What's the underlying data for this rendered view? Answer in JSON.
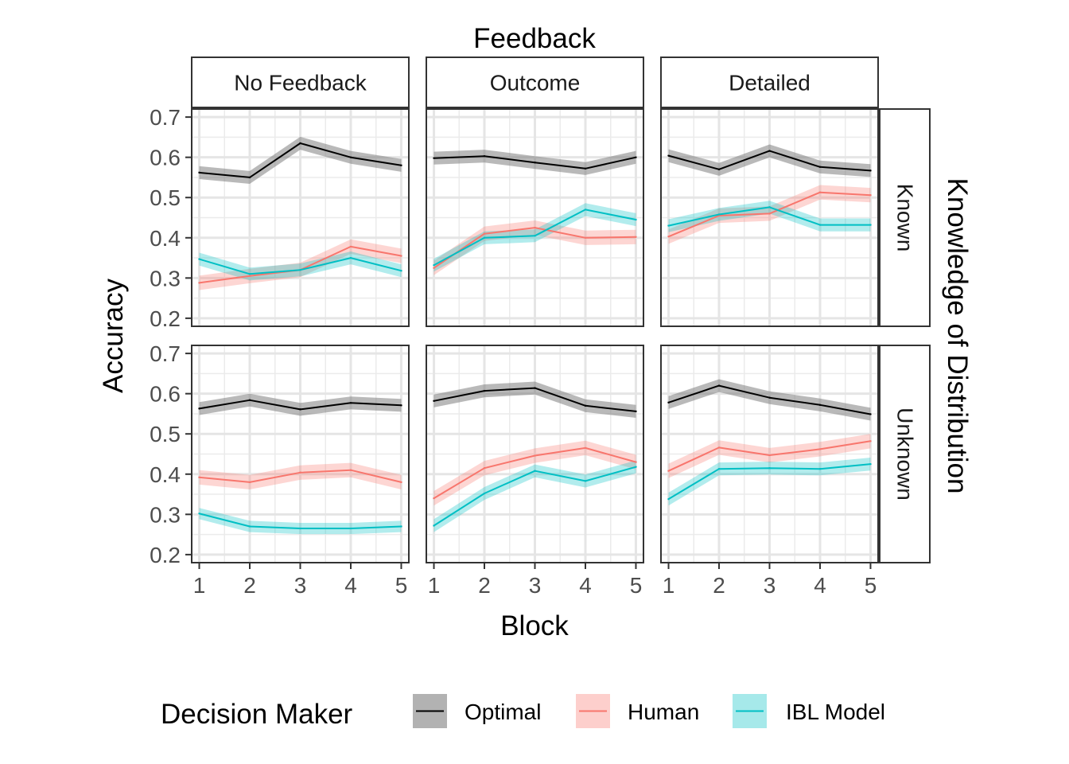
{
  "chart_data": {
    "type": "line",
    "facet_column_title": "Feedback",
    "facet_row_title": "Knowledge of Distribution",
    "columns": [
      "No Feedback",
      "Outcome",
      "Detailed"
    ],
    "rows": [
      "Known",
      "Unknown"
    ],
    "xlabel": "Block",
    "ylabel": "Accuracy",
    "x": [
      1,
      2,
      3,
      4,
      5
    ],
    "x_ticks": [
      "1",
      "2",
      "3",
      "4",
      "5"
    ],
    "xlim": [
      0.85,
      5.15
    ],
    "ylim": [
      0.18,
      0.72
    ],
    "y_ticks": [
      "0.2",
      "0.3",
      "0.4",
      "0.5",
      "0.6",
      "0.7"
    ],
    "grid": true,
    "legend": {
      "title": "Decision Maker",
      "position": "bottom",
      "entries": [
        {
          "name": "Optimal",
          "color": "#000000",
          "band_color": "#7f7f7f"
        },
        {
          "name": "Human",
          "color": "#F8766D",
          "band_color": "#F8766D"
        },
        {
          "name": "IBL Model",
          "color": "#00BFC4",
          "band_color": "#00BFC4"
        }
      ]
    },
    "panels": [
      {
        "column": "No Feedback",
        "row": "Known",
        "series": [
          {
            "name": "Optimal",
            "values": [
              0.562,
              0.55,
              0.635,
              0.6,
              0.58
            ],
            "band": 0.016
          },
          {
            "name": "Human",
            "values": [
              0.288,
              0.305,
              0.32,
              0.378,
              0.355
            ],
            "band": 0.018
          },
          {
            "name": "IBL Model",
            "values": [
              0.347,
              0.31,
              0.32,
              0.35,
              0.318
            ],
            "band": 0.016
          }
        ]
      },
      {
        "column": "Outcome",
        "row": "Known",
        "series": [
          {
            "name": "Optimal",
            "values": [
              0.598,
              0.603,
              0.587,
              0.572,
              0.6
            ],
            "band": 0.016
          },
          {
            "name": "Human",
            "values": [
              0.325,
              0.41,
              0.425,
              0.4,
              0.402
            ],
            "band": 0.018
          },
          {
            "name": "IBL Model",
            "values": [
              0.332,
              0.4,
              0.405,
              0.47,
              0.445
            ],
            "band": 0.016
          }
        ]
      },
      {
        "column": "Detailed",
        "row": "Known",
        "series": [
          {
            "name": "Optimal",
            "values": [
              0.604,
              0.57,
              0.616,
              0.576,
              0.567
            ],
            "band": 0.016
          },
          {
            "name": "Human",
            "values": [
              0.403,
              0.455,
              0.46,
              0.513,
              0.506
            ],
            "band": 0.018
          },
          {
            "name": "IBL Model",
            "values": [
              0.43,
              0.458,
              0.476,
              0.432,
              0.432
            ],
            "band": 0.016
          }
        ]
      },
      {
        "column": "No Feedback",
        "row": "Unknown",
        "series": [
          {
            "name": "Optimal",
            "values": [
              0.563,
              0.584,
              0.561,
              0.577,
              0.571
            ],
            "band": 0.016
          },
          {
            "name": "Human",
            "values": [
              0.392,
              0.38,
              0.404,
              0.41,
              0.38
            ],
            "band": 0.018
          },
          {
            "name": "IBL Model",
            "values": [
              0.302,
              0.27,
              0.265,
              0.265,
              0.27
            ],
            "band": 0.014
          }
        ]
      },
      {
        "column": "Outcome",
        "row": "Unknown",
        "series": [
          {
            "name": "Optimal",
            "values": [
              0.582,
              0.607,
              0.614,
              0.57,
              0.556
            ],
            "band": 0.016
          },
          {
            "name": "Human",
            "values": [
              0.34,
              0.415,
              0.446,
              0.465,
              0.43
            ],
            "band": 0.018
          },
          {
            "name": "IBL Model",
            "values": [
              0.272,
              0.352,
              0.408,
              0.383,
              0.418
            ],
            "band": 0.016
          }
        ]
      },
      {
        "column": "Detailed",
        "row": "Unknown",
        "series": [
          {
            "name": "Optimal",
            "values": [
              0.578,
              0.62,
              0.59,
              0.572,
              0.549
            ],
            "band": 0.016
          },
          {
            "name": "Human",
            "values": [
              0.408,
              0.466,
              0.447,
              0.462,
              0.482
            ],
            "band": 0.018
          },
          {
            "name": "IBL Model",
            "values": [
              0.338,
              0.413,
              0.415,
              0.413,
              0.425
            ],
            "band": 0.016
          }
        ]
      }
    ]
  }
}
